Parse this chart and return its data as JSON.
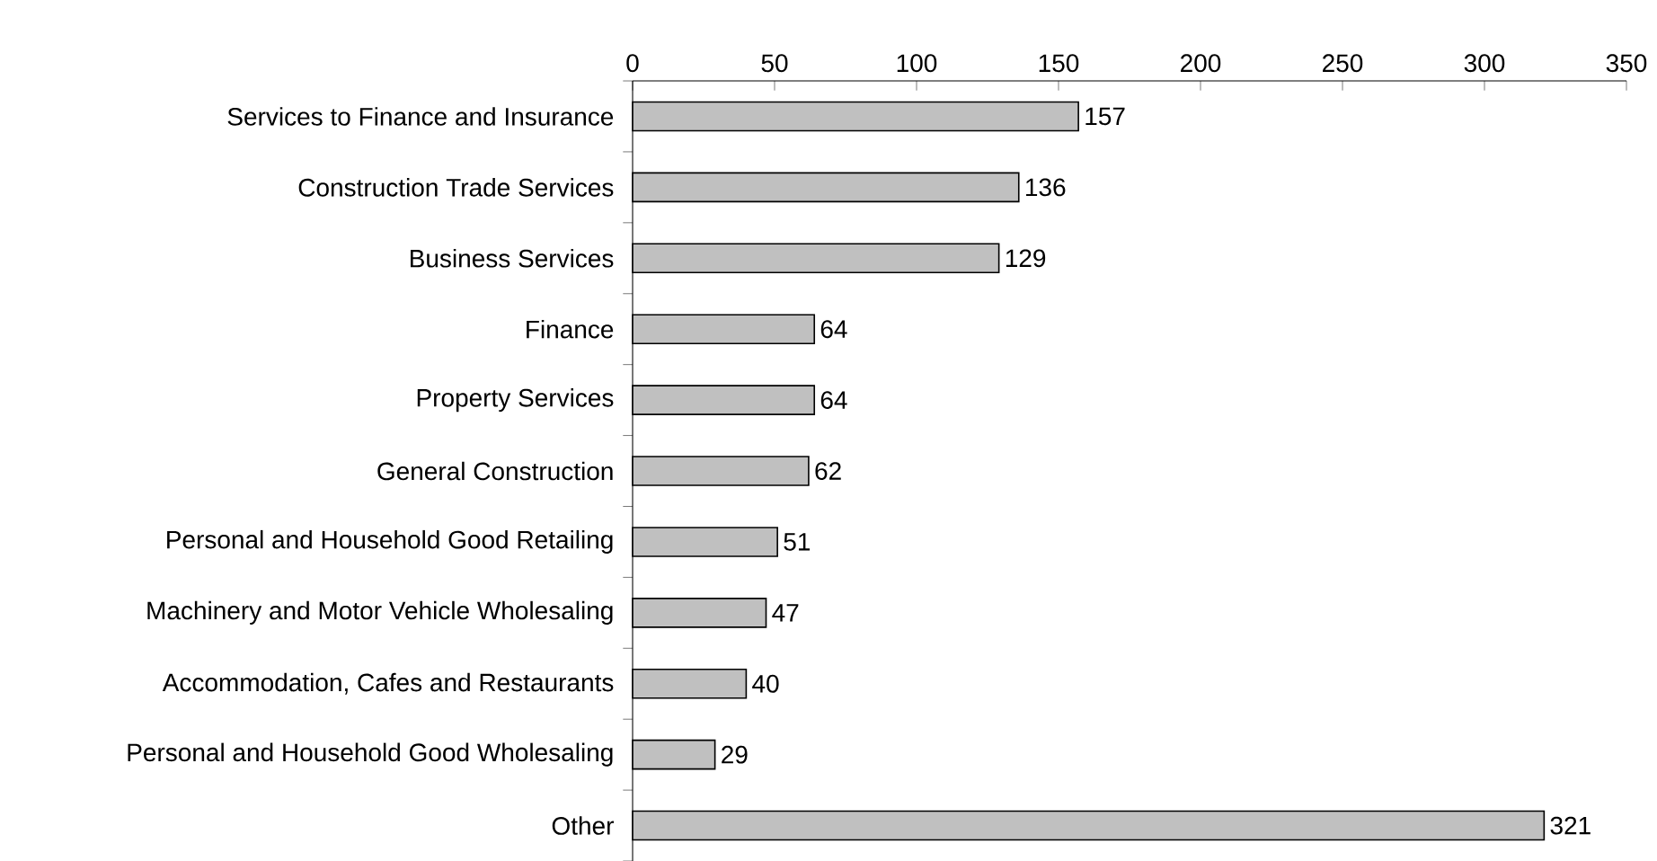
{
  "chart_data": {
    "type": "bar",
    "orientation": "horizontal",
    "categories": [
      "Services to Finance and Insurance",
      "Construction Trade Services",
      "Business Services",
      "Finance",
      "Property Services",
      "General Construction",
      "Personal and Household Good Retailing",
      "Machinery and Motor Vehicle Wholesaling",
      "Accommodation, Cafes and Restaurants",
      "Personal and Household Good Wholesaling",
      "Other"
    ],
    "values": [
      157,
      136,
      129,
      64,
      64,
      62,
      51,
      47,
      40,
      29,
      321
    ],
    "color": "#c0c0c0",
    "xlim": [
      0,
      350
    ],
    "xticks": [
      0,
      50,
      100,
      150,
      200,
      250,
      300,
      350
    ],
    "data_labels": true,
    "grid": false
  }
}
